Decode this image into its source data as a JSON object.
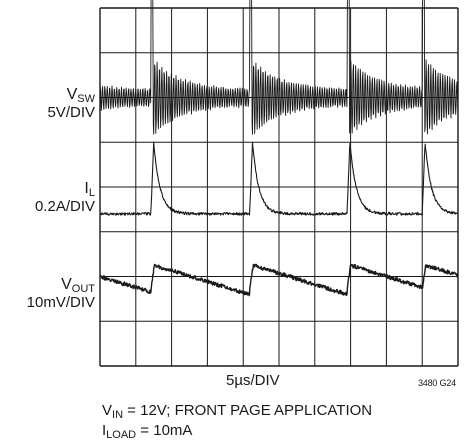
{
  "chart_data": {
    "type": "line",
    "grid": true,
    "grid_divisions": {
      "horizontal": 10,
      "vertical": 8
    },
    "timebase": "5µs/DIV",
    "figure_id": "3480 G24",
    "conditions": [
      {
        "sym": "V",
        "sub": "IN",
        "rest": " = 12V; FRONT PAGE APPLICATION"
      },
      {
        "sym": "I",
        "sub": "LOAD",
        "rest": " = 10mA"
      }
    ],
    "traces": [
      {
        "sym": "V",
        "sub": "SW",
        "scale": "5V/DIV",
        "baseline_div": 2.0,
        "pulse_times_div": [
          1.42,
          4.18,
          6.9,
          9.0
        ],
        "peak_div": 2.3,
        "ring_div": 0.7,
        "decay_div": 0.75
      },
      {
        "sym": "I",
        "sub": "L",
        "scale": "0.2A/DIV",
        "baseline_div": 4.6,
        "pulse_times_div": [
          1.42,
          4.18,
          6.9,
          9.0
        ],
        "peak_div": 1.6,
        "decay_div": 0.18
      },
      {
        "sym": "V",
        "sub": "OUT",
        "scale": "10mV/DIV",
        "baseline_div": 6.05,
        "pulse_times_div": [
          1.42,
          4.18,
          6.9,
          9.0
        ],
        "step_div": 0.55,
        "droop_div": 0.5
      }
    ]
  }
}
